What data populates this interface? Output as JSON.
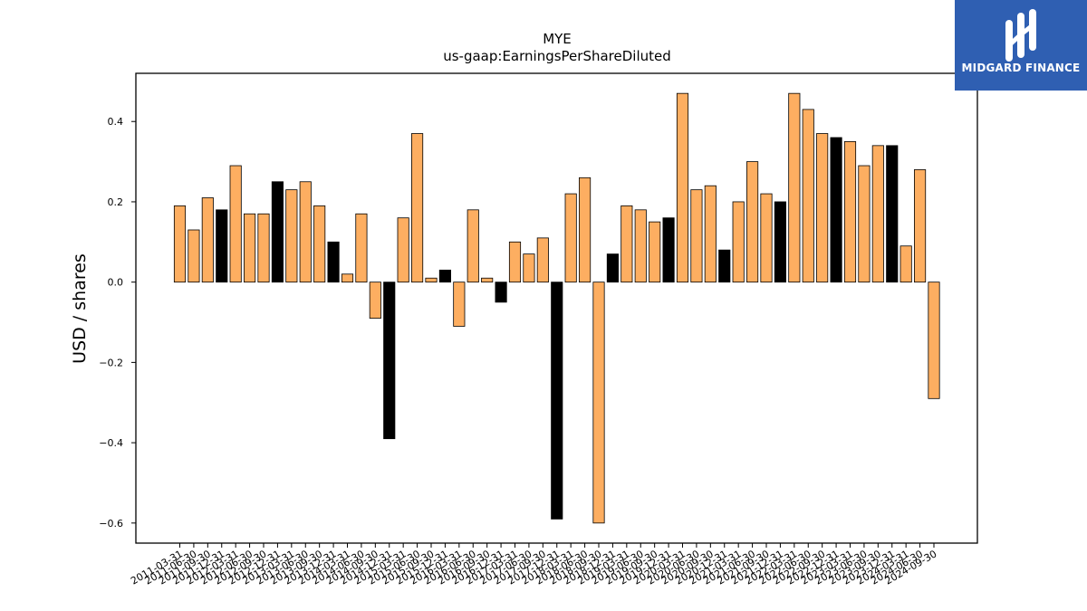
{
  "brand": {
    "name": "MIDGARD FINANCE",
    "bg_color": "#2f5fb2"
  },
  "chart_data": {
    "type": "bar",
    "title": "MYE",
    "subtitle": "us-gaap:EarningsPerShareDiluted",
    "xlabel": "",
    "ylabel": "USD / shares",
    "ylim": [
      -0.65,
      0.52
    ],
    "yticks": [
      -0.6,
      -0.4,
      -0.2,
      0.0,
      0.2,
      0.4
    ],
    "ytick_labels": [
      "−0.6",
      "−0.4",
      "−0.2",
      "0.0",
      "0.2",
      "0.4"
    ],
    "grid": false,
    "colors": {
      "quarter": "#fdae61",
      "annual": "#000000",
      "edge": "#000000"
    },
    "categories": [
      "2011-03-31",
      "2011-06-30",
      "2011-09-30",
      "2011-12-31",
      "2012-03-31",
      "2012-06-30",
      "2012-09-30",
      "2012-12-31",
      "2013-03-31",
      "2013-06-30",
      "2013-09-30",
      "2013-12-31",
      "2014-03-31",
      "2014-06-30",
      "2014-09-30",
      "2014-12-31",
      "2015-03-31",
      "2015-06-30",
      "2015-09-30",
      "2015-12-31",
      "2016-03-31",
      "2016-06-30",
      "2016-09-30",
      "2016-12-31",
      "2017-03-31",
      "2017-06-30",
      "2017-09-30",
      "2017-12-31",
      "2018-03-31",
      "2018-06-30",
      "2018-09-30",
      "2018-12-31",
      "2019-03-31",
      "2019-06-30",
      "2019-09-30",
      "2019-12-31",
      "2020-03-31",
      "2020-06-30",
      "2020-09-30",
      "2020-12-31",
      "2021-03-31",
      "2021-06-30",
      "2021-09-30",
      "2021-12-31",
      "2022-03-31",
      "2022-06-30",
      "2022-09-30",
      "2022-12-31",
      "2023-03-31",
      "2023-06-30",
      "2023-09-30",
      "2023-12-31",
      "2024-03-31",
      "2024-06-30",
      "2024-09-30"
    ],
    "values": [
      0.19,
      0.13,
      0.21,
      0.18,
      0.29,
      0.17,
      0.17,
      0.25,
      0.23,
      0.25,
      0.19,
      0.1,
      0.02,
      0.17,
      -0.09,
      -0.39,
      0.16,
      0.37,
      0.01,
      0.03,
      -0.11,
      0.18,
      0.01,
      -0.05,
      0.1,
      0.07,
      0.11,
      -0.59,
      0.22,
      0.26,
      -0.6,
      0.07,
      0.19,
      0.18,
      0.15,
      0.16,
      0.47,
      0.23,
      0.24,
      0.08,
      0.2,
      0.3,
      0.22,
      0.2,
      0.47,
      0.43,
      0.37,
      0.36,
      0.35,
      0.29,
      0.34,
      0.34,
      0.09,
      0.28,
      -0.29
    ],
    "annual": [
      false,
      false,
      false,
      true,
      false,
      false,
      false,
      true,
      false,
      false,
      false,
      true,
      false,
      false,
      false,
      true,
      false,
      false,
      false,
      true,
      false,
      false,
      false,
      true,
      false,
      false,
      false,
      true,
      false,
      false,
      false,
      true,
      false,
      false,
      false,
      true,
      false,
      false,
      false,
      true,
      false,
      false,
      false,
      true,
      false,
      false,
      false,
      true,
      false,
      false,
      false,
      true,
      false,
      false,
      false
    ]
  }
}
